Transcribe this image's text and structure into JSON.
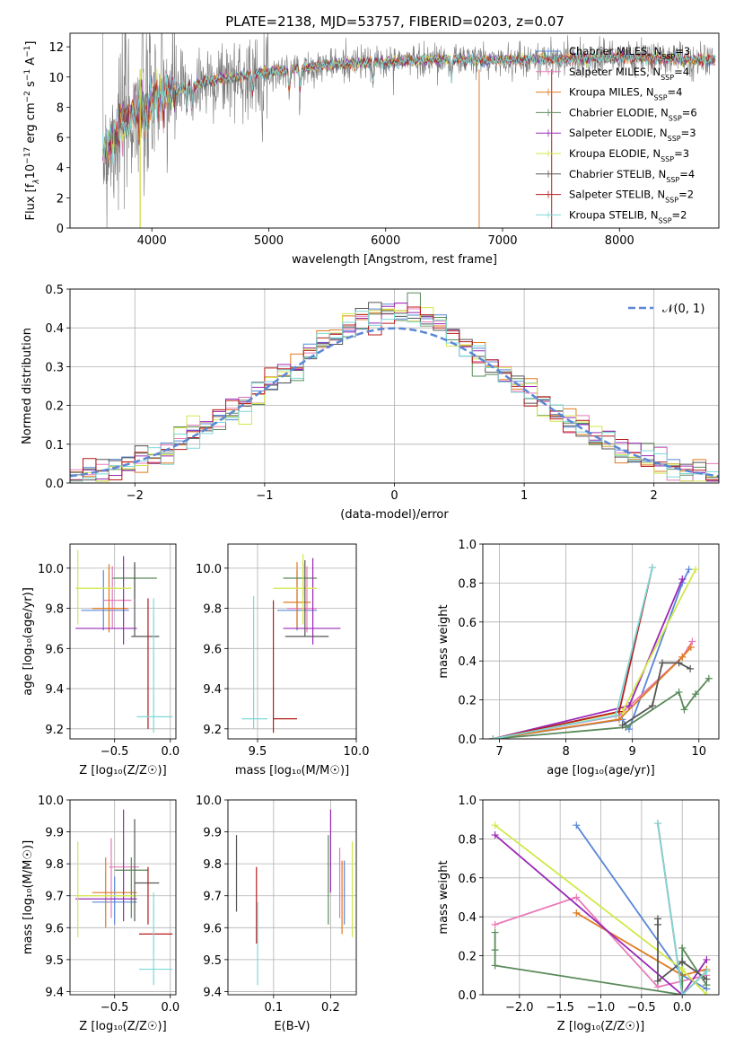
{
  "title": "PLATE=2138, MJD=53757, FIBERID=0203, z=0.07",
  "series_colors": {
    "Chabrier MILES": "#5b87d6",
    "Salpeter MILES": "#e87ab8",
    "Kroupa MILES": "#e07b20",
    "Chabrier ELODIE": "#5a8a5a",
    "Salpeter ELODIE": "#9a28b8",
    "Kroupa ELODIE": "#d2e84a",
    "Chabrier STELIB": "#555555",
    "Salpeter STELIB": "#b81c1c",
    "Kroupa STELIB": "#7dd8d8"
  },
  "chart_data": [
    {
      "id": "spectrum",
      "type": "line",
      "xlabel": "wavelength [Angstrom, rest frame]",
      "ylabel_parts": [
        "Flux [f",
        "λ",
        "10",
        "−17",
        " erg cm",
        "−2",
        " s",
        "−1",
        " A",
        "−1",
        "]"
      ],
      "xlim": [
        3300,
        8850
      ],
      "ylim": [
        0,
        12.9
      ],
      "xticks": [
        4000,
        5000,
        6000,
        7000,
        8000
      ],
      "yticks": [
        0,
        2,
        4,
        6,
        8,
        10,
        12
      ],
      "legend": "upper right",
      "legend_entries": [
        {
          "label": "Chabrier MILES, N",
          "nssp": 3
        },
        {
          "label": "Salpeter MILES, N",
          "nssp": 4
        },
        {
          "label": "Kroupa MILES, N",
          "nssp": 4
        },
        {
          "label": "Chabrier ELODIE, N",
          "nssp": 6
        },
        {
          "label": "Salpeter ELODIE, N",
          "nssp": 3
        },
        {
          "label": "Kroupa ELODIE, N",
          "nssp": 3
        },
        {
          "label": "Chabrier STELIB, N",
          "nssp": 4
        },
        {
          "label": "Salpeter STELIB, N",
          "nssp": 2
        },
        {
          "label": "Kroupa STELIB, N",
          "nssp": 2
        }
      ],
      "nssp_sub": "SSP",
      "data_envelope": {
        "x": [
          3580,
          3800,
          4000,
          4500,
          5000,
          5500,
          6000,
          6500,
          7000,
          7500,
          8000,
          8500,
          8800
        ],
        "y": [
          5.0,
          7.4,
          8.6,
          9.8,
          10.3,
          10.8,
          11.0,
          11.2,
          11.1,
          11.2,
          11.3,
          11.2,
          11.1
        ]
      }
    },
    {
      "id": "residuals",
      "type": "histogram",
      "xlabel": "(data-model)/error",
      "ylabel": "Normed distribution",
      "xlim": [
        -2.5,
        2.5
      ],
      "ylim": [
        0,
        0.5
      ],
      "xticks": [
        -2,
        -1,
        0,
        1,
        2
      ],
      "yticks": [
        0.0,
        0.1,
        0.2,
        0.3,
        0.4,
        0.5
      ],
      "legend": "upper right",
      "legend_label": "𝒩(0, 1)",
      "gaussian_color": "#5b87d6",
      "bin_width": 0.1
    },
    {
      "id": "age-vs-Z",
      "type": "errorbar",
      "xlabel": "Z [log₁₀(Z/Z☉)]",
      "ylabel": "age  [log₁₀(age/yr)]",
      "xlim": [
        -0.9,
        0.05
      ],
      "ylim": [
        9.15,
        10.12
      ],
      "xticks": [
        -0.5,
        0.0
      ],
      "xticklabels": [
        "−0.5",
        "0.0"
      ],
      "yticks": [
        9.2,
        9.4,
        9.6,
        9.8,
        10.0
      ],
      "yticklabels": [
        "9.2",
        "9.4",
        "9.6",
        "9.8",
        "10.0"
      ],
      "points": [
        {
          "s": "Chabrier MILES",
          "x": -0.6,
          "y": 9.79,
          "xe": [
            -0.8,
            -0.37
          ],
          "ye": [
            9.69,
            9.99
          ]
        },
        {
          "s": "Salpeter MILES",
          "x": -0.52,
          "y": 9.84,
          "xe": [
            -0.6,
            -0.35
          ],
          "ye": [
            9.7,
            10.01
          ]
        },
        {
          "s": "Kroupa MILES",
          "x": -0.55,
          "y": 9.8,
          "xe": [
            -0.7,
            -0.38
          ],
          "ye": [
            9.68,
            10.02
          ]
        },
        {
          "s": "Chabrier ELODIE",
          "x": -0.32,
          "y": 9.95,
          "xe": [
            -0.52,
            -0.12
          ],
          "ye": [
            9.85,
            10.02
          ]
        },
        {
          "s": "Salpeter ELODIE",
          "x": -0.42,
          "y": 9.7,
          "xe": [
            -0.85,
            -0.3
          ],
          "ye": [
            9.62,
            10.06
          ]
        },
        {
          "s": "Kroupa ELODIE",
          "x": -0.83,
          "y": 9.9,
          "xe": [
            -0.85,
            -0.35
          ],
          "ye": [
            9.72,
            10.09
          ]
        },
        {
          "s": "Chabrier STELIB",
          "x": -0.32,
          "y": 9.66,
          "xe": [
            -0.35,
            -0.1
          ],
          "ye": [
            9.66,
            10.03
          ]
        },
        {
          "s": "Salpeter STELIB",
          "x": -0.2,
          "y": 9.23,
          "xe": [
            -0.2,
            -0.2
          ],
          "ye": [
            9.2,
            9.85
          ]
        },
        {
          "s": "Kroupa STELIB",
          "x": -0.15,
          "y": 9.26,
          "xe": [
            -0.3,
            0.02
          ],
          "ye": [
            9.18,
            9.85
          ]
        }
      ]
    },
    {
      "id": "age-vs-mass",
      "type": "errorbar",
      "xlabel": "mass [log₁₀(M/M☉)]",
      "ylabel": "",
      "xlim": [
        9.35,
        10.0
      ],
      "ylim": [
        9.15,
        10.12
      ],
      "xticks": [
        9.5,
        10.0
      ],
      "xticklabels": [
        "9.5",
        "10.0"
      ],
      "yticks": [
        9.2,
        9.4,
        9.6,
        9.8,
        10.0
      ],
      "yticklabels": [
        "9.2",
        "9.4",
        "9.6",
        "9.8",
        "10.0"
      ],
      "points": [
        {
          "s": "Chabrier MILES",
          "x": 9.7,
          "y": 9.79,
          "xe": [
            9.6,
            9.8
          ],
          "ye": [
            9.69,
            9.99
          ]
        },
        {
          "s": "Salpeter MILES",
          "x": 9.75,
          "y": 9.8,
          "xe": [
            9.65,
            9.8
          ],
          "ye": [
            9.68,
            10.01
          ]
        },
        {
          "s": "Kroupa MILES",
          "x": 9.7,
          "y": 9.83,
          "xe": [
            9.63,
            9.77
          ],
          "ye": [
            9.7,
            10.03
          ]
        },
        {
          "s": "Chabrier ELODIE",
          "x": 9.73,
          "y": 9.95,
          "xe": [
            9.63,
            9.8
          ],
          "ye": [
            9.86,
            10.02
          ]
        },
        {
          "s": "Salpeter ELODIE",
          "x": 9.78,
          "y": 9.7,
          "xe": [
            9.63,
            9.92
          ],
          "ye": [
            9.62,
            10.05
          ]
        },
        {
          "s": "Kroupa ELODIE",
          "x": 9.73,
          "y": 9.9,
          "xe": [
            9.58,
            9.8
          ],
          "ye": [
            9.72,
            10.07
          ]
        },
        {
          "s": "Chabrier STELIB",
          "x": 9.74,
          "y": 9.66,
          "xe": [
            9.64,
            9.86
          ],
          "ye": [
            9.66,
            10.04
          ]
        },
        {
          "s": "Salpeter STELIB",
          "x": 9.58,
          "y": 9.25,
          "xe": [
            9.58,
            9.7
          ],
          "ye": [
            9.18,
            9.84
          ]
        },
        {
          "s": "Kroupa STELIB",
          "x": 9.48,
          "y": 9.25,
          "xe": [
            9.42,
            9.55
          ],
          "ye": [
            9.2,
            9.86
          ]
        }
      ]
    },
    {
      "id": "massweight-vs-age",
      "type": "line",
      "xlabel": "age  [log₁₀(age/yr)]",
      "ylabel": "mass weight",
      "xlim": [
        6.75,
        10.3
      ],
      "ylim": [
        0,
        1.0
      ],
      "xticks": [
        7,
        8,
        9,
        10
      ],
      "yticks": [
        0.0,
        0.2,
        0.4,
        0.6,
        0.8,
        1.0
      ],
      "series": [
        {
          "s": "Chabrier MILES",
          "x": [
            6.9,
            8.85,
            8.95,
            9.75,
            9.85
          ],
          "y": [
            0.0,
            0.1,
            0.05,
            0.8,
            0.87
          ]
        },
        {
          "s": "Salpeter MILES",
          "x": [
            6.9,
            8.8,
            9.75,
            9.9
          ],
          "y": [
            0.0,
            0.12,
            0.42,
            0.5
          ]
        },
        {
          "s": "Kroupa MILES",
          "x": [
            6.9,
            8.8,
            9.75,
            9.88
          ],
          "y": [
            0.0,
            0.1,
            0.42,
            0.47
          ]
        },
        {
          "s": "Chabrier ELODIE",
          "x": [
            6.9,
            8.9,
            9.7,
            9.78,
            9.95,
            10.15
          ],
          "y": [
            0.0,
            0.06,
            0.24,
            0.15,
            0.23,
            0.31
          ]
        },
        {
          "s": "Salpeter ELODIE",
          "x": [
            6.9,
            8.95,
            9.75
          ],
          "y": [
            0.0,
            0.17,
            0.82
          ]
        },
        {
          "s": "Kroupa ELODIE",
          "x": [
            6.9,
            8.85,
            9.95
          ],
          "y": [
            0.0,
            0.14,
            0.87
          ]
        },
        {
          "s": "Chabrier STELIB",
          "x": [
            8.85,
            9.3,
            9.45,
            9.7,
            9.87
          ],
          "y": [
            0.07,
            0.17,
            0.39,
            0.39,
            0.36
          ]
        },
        {
          "s": "Salpeter STELIB",
          "x": [
            6.9,
            8.8,
            9.3
          ],
          "y": [
            0.0,
            0.14,
            0.88
          ]
        },
        {
          "s": "Kroupa STELIB",
          "x": [
            6.9,
            8.75,
            9.3
          ],
          "y": [
            0.0,
            0.12,
            0.88
          ]
        }
      ]
    },
    {
      "id": "mass-vs-Z",
      "type": "errorbar",
      "xlabel": "Z [log₁₀(Z/Z☉)]",
      "ylabel": "mass [log₁₀(M/M☉)]",
      "xlim": [
        -0.9,
        0.05
      ],
      "ylim": [
        9.39,
        10.0
      ],
      "xticks": [
        -0.5,
        0.0
      ],
      "xticklabels": [
        "−0.5",
        "0.0"
      ],
      "yticks": [
        9.4,
        9.5,
        9.6,
        9.7,
        9.8,
        9.9,
        10.0
      ],
      "yticklabels": [
        "9.4",
        "9.5",
        "9.6",
        "9.7",
        "9.8",
        "9.9",
        "10.0"
      ],
      "points": [
        {
          "s": "Chabrier MILES",
          "x": -0.5,
          "y": 9.68,
          "xe": [
            -0.7,
            -0.3
          ],
          "ye": [
            9.61,
            9.76
          ]
        },
        {
          "s": "Salpeter MILES",
          "x": -0.53,
          "y": 9.79,
          "xe": [
            -0.55,
            -0.28
          ],
          "ye": [
            9.63,
            9.88
          ]
        },
        {
          "s": "Kroupa MILES",
          "x": -0.58,
          "y": 9.71,
          "xe": [
            -0.7,
            -0.3
          ],
          "ye": [
            9.6,
            9.82
          ]
        },
        {
          "s": "Chabrier ELODIE",
          "x": -0.35,
          "y": 9.78,
          "xe": [
            -0.5,
            -0.2
          ],
          "ye": [
            9.63,
            9.82
          ]
        },
        {
          "s": "Salpeter ELODIE",
          "x": -0.42,
          "y": 9.69,
          "xe": [
            -0.85,
            -0.3
          ],
          "ye": [
            9.62,
            9.97
          ]
        },
        {
          "s": "Kroupa ELODIE",
          "x": -0.83,
          "y": 9.7,
          "xe": [
            -0.85,
            -0.3
          ],
          "ye": [
            9.57,
            9.87
          ]
        },
        {
          "s": "Chabrier STELIB",
          "x": -0.32,
          "y": 9.74,
          "xe": [
            -0.32,
            -0.1
          ],
          "ye": [
            9.62,
            9.94
          ]
        },
        {
          "s": "Salpeter STELIB",
          "x": -0.2,
          "y": 9.58,
          "xe": [
            -0.28,
            0.02
          ],
          "ye": [
            9.61,
            9.79
          ]
        },
        {
          "s": "Kroupa STELIB",
          "x": -0.15,
          "y": 9.47,
          "xe": [
            -0.28,
            0.02
          ],
          "ye": [
            9.42,
            9.71
          ]
        }
      ]
    },
    {
      "id": "mass-vs-ebv",
      "type": "errorbar",
      "xlabel": "E(B-V)",
      "ylabel": "",
      "xlim": [
        0.02,
        0.245
      ],
      "ylim": [
        9.39,
        10.0
      ],
      "xticks": [
        0.1,
        0.2
      ],
      "xticklabels": [
        "0.1",
        "0.2"
      ],
      "yticks": [
        9.4,
        9.5,
        9.6,
        9.7,
        9.8,
        9.9,
        10.0
      ],
      "yticklabels": [
        "9.4",
        "9.5",
        "9.6",
        "9.7",
        "9.8",
        "9.9",
        "10.0"
      ],
      "points": [
        {
          "s": "Chabrier STELIB",
          "x": 0.035,
          "y": 9.77,
          "ye": [
            9.65,
            9.89
          ]
        },
        {
          "s": "Salpeter STELIB",
          "x": 0.07,
          "y": 9.67,
          "ye": [
            9.55,
            9.79
          ]
        },
        {
          "s": "Kroupa STELIB",
          "x": 0.072,
          "y": 9.55,
          "ye": [
            9.42,
            9.68
          ]
        },
        {
          "s": "Chabrier ELODIE",
          "x": 0.196,
          "y": 9.75,
          "ye": [
            9.61,
            9.89
          ]
        },
        {
          "s": "Salpeter ELODIE",
          "x": 0.2,
          "y": 9.84,
          "ye": [
            9.71,
            9.97
          ]
        },
        {
          "s": "Kroupa MILES",
          "x": 0.22,
          "y": 9.7,
          "ye": [
            9.58,
            9.81
          ]
        },
        {
          "s": "Chabrier MILES",
          "x": 0.224,
          "y": 9.72,
          "ye": [
            9.61,
            9.81
          ]
        },
        {
          "s": "Salpeter MILES",
          "x": 0.216,
          "y": 9.74,
          "ye": [
            9.63,
            9.85
          ]
        },
        {
          "s": "Kroupa ELODIE",
          "x": 0.238,
          "y": 9.72,
          "ye": [
            9.57,
            9.87
          ]
        }
      ]
    },
    {
      "id": "massweight-vs-Z",
      "type": "line",
      "xlabel": "Z [log₁₀(Z/Z☉)]",
      "ylabel": "mass weight",
      "xlim": [
        -2.45,
        0.45
      ],
      "ylim": [
        0,
        1.0
      ],
      "xticks": [
        -2.0,
        -1.5,
        -1.0,
        -0.5,
        0.0
      ],
      "xticklabels": [
        "−2.0",
        "−1.5",
        "−1.0",
        "−0.5",
        "0.0"
      ],
      "yticks": [
        0.0,
        0.2,
        0.4,
        0.6,
        0.8,
        1.0
      ],
      "series": [
        {
          "s": "Chabrier MILES",
          "x": [
            -1.3,
            0.0,
            0.3
          ],
          "y": [
            0.87,
            0.1,
            0.03
          ]
        },
        {
          "s": "Salpeter MILES",
          "x": [
            -2.3,
            -1.3,
            -0.3,
            0.3
          ],
          "y": [
            0.36,
            0.5,
            0.04,
            0.1
          ]
        },
        {
          "s": "Kroupa MILES",
          "x": [
            -1.3,
            0.0,
            0.3
          ],
          "y": [
            0.42,
            0.1,
            0.13
          ]
        },
        {
          "s": "Chabrier ELODIE",
          "x": [
            -2.3,
            -2.3,
            -2.3,
            0.0,
            0.0,
            0.3
          ],
          "y": [
            0.32,
            0.23,
            0.15,
            0.0,
            0.24,
            0.05
          ]
        },
        {
          "s": "Salpeter ELODIE",
          "x": [
            -2.3,
            0.0,
            0.3
          ],
          "y": [
            0.82,
            0.0,
            0.18
          ]
        },
        {
          "s": "Kroupa ELODIE",
          "x": [
            -2.3,
            0.0,
            0.3
          ],
          "y": [
            0.87,
            0.13,
            0.0
          ]
        },
        {
          "s": "Chabrier STELIB",
          "x": [
            -0.3,
            -0.3,
            -0.3,
            0.0,
            0.3
          ],
          "y": [
            0.39,
            0.36,
            0.07,
            0.17,
            0.08
          ]
        },
        {
          "s": "Salpeter STELIB",
          "x": [
            -0.3,
            0.0,
            0.3
          ],
          "y": [
            0.88,
            0.0,
            0.12
          ]
        },
        {
          "s": "Kroupa STELIB",
          "x": [
            -0.3,
            0.0,
            0.3
          ],
          "y": [
            0.88,
            0.0,
            0.12
          ]
        }
      ]
    }
  ]
}
